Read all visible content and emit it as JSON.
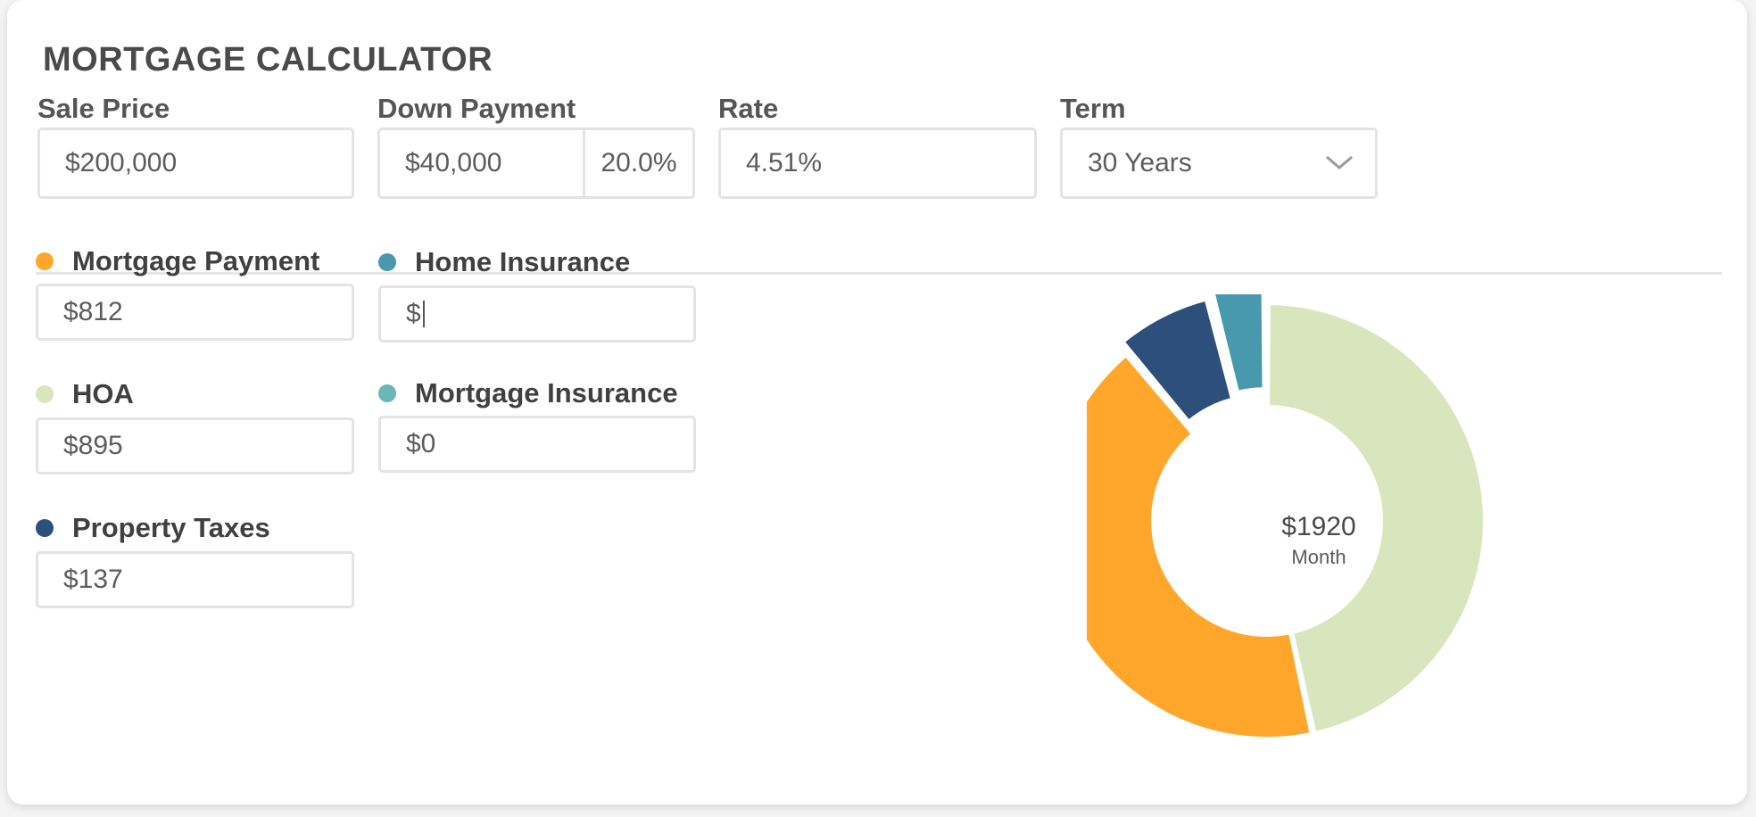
{
  "header": {
    "title": "MORTGAGE CALCULATOR"
  },
  "inputs": {
    "sale_price": {
      "label": "Sale Price",
      "value": "$200,000"
    },
    "down_payment": {
      "label": "Down Payment",
      "value": "$40,000",
      "percent": "20.0%"
    },
    "rate": {
      "label": "Rate",
      "value": "4.51%"
    },
    "term": {
      "label": "Term",
      "selected": "30 Years",
      "icon": "chevron-down-icon"
    }
  },
  "costs": {
    "mortgage_payment": {
      "label": "Mortgage Payment",
      "value": "$812",
      "color": "#ffa62b"
    },
    "home_insurance": {
      "label": "Home Insurance",
      "value": "$",
      "color": "#4899ae"
    },
    "hoa": {
      "label": "HOA",
      "value": "$895",
      "color": "#d9e6bd"
    },
    "mortgage_insurance": {
      "label": "Mortgage Insurance",
      "value": "$0",
      "color": "#6ab7b6"
    },
    "property_taxes": {
      "label": "Property Taxes",
      "value": "$137",
      "color": "#2c4f7c"
    }
  },
  "chart_data": {
    "type": "pie",
    "center_amount": "$1920",
    "center_unit": "Month",
    "slices": [
      {
        "name": "HOA",
        "value": 895,
        "color": "#d9e6bd"
      },
      {
        "name": "Mortgage Payment",
        "value": 812,
        "color": "#ffa62b"
      },
      {
        "name": "Property Taxes",
        "value": 137,
        "color": "#2c4f7c"
      },
      {
        "name": "Home Insurance",
        "value": 76,
        "color": "#4899ae"
      }
    ]
  }
}
